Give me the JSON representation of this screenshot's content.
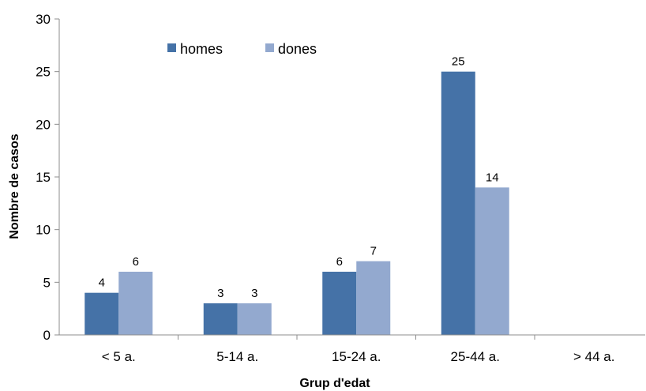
{
  "chart_data": {
    "type": "bar",
    "categories": [
      "< 5 a.",
      "5-14 a.",
      "15-24 a.",
      "25-44 a.",
      "> 44 a."
    ],
    "series": [
      {
        "name": "homes",
        "values": [
          4,
          3,
          6,
          25,
          null
        ],
        "color": "#4572A7"
      },
      {
        "name": "dones",
        "values": [
          6,
          3,
          7,
          14,
          null
        ],
        "color": "#93A9CF"
      }
    ],
    "xlabel": "Grup d'edat",
    "ylabel": "Nombre de casos",
    "ylim": [
      0,
      30
    ],
    "yticks": [
      0,
      5,
      10,
      15,
      20,
      25,
      30
    ],
    "grid": false,
    "legend": "top-left"
  }
}
